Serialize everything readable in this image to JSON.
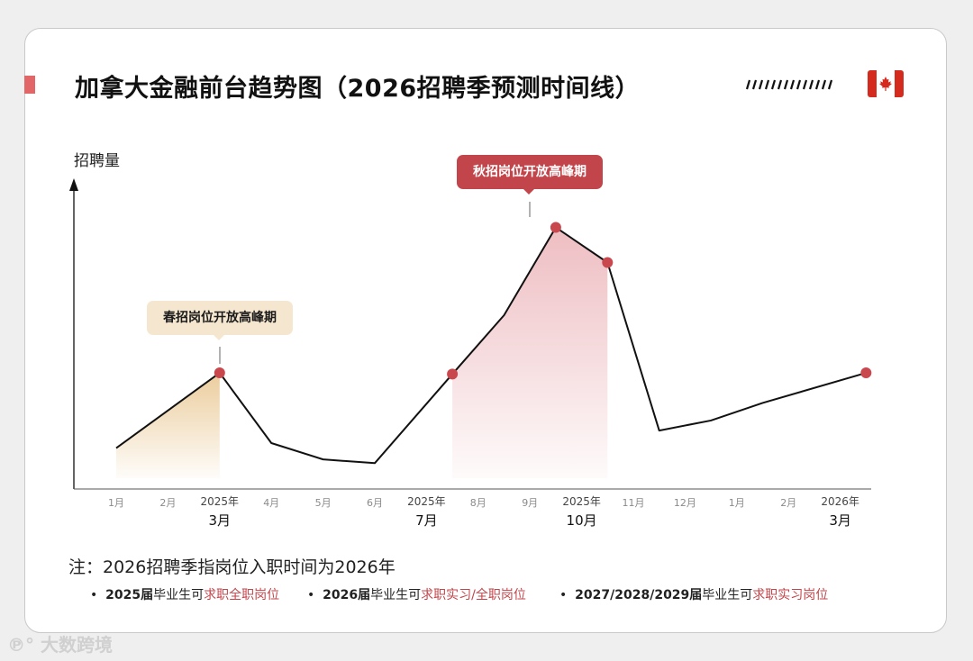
{
  "header": {
    "title": "加拿大金融前台趋势图（2026招聘季预测时间线）",
    "flag_icon": "canada-flag-icon",
    "hatch_icon": "hatch-decoration-icon"
  },
  "callouts": {
    "spring": "春招岗位开放高峰期",
    "autumn": "秋招岗位开放高峰期"
  },
  "note": {
    "text": "注：2026招聘季指岗位入职时间为2026年",
    "bullets": [
      {
        "bold": "2025届",
        "plain": "毕业生可",
        "red": "求职全职岗位"
      },
      {
        "bold": "2026届",
        "plain": "毕业生可",
        "red": "求职实习/全职岗位"
      },
      {
        "bold": "2027/2028/2029届",
        "plain": "毕业生可",
        "red": "求职实习岗位"
      }
    ]
  },
  "watermark": "大数跨境",
  "colors": {
    "accent": "#e26567",
    "autumn_red": "#c2454b",
    "spring_beige": "#f5e7cf",
    "marker": "#c8484e",
    "line": "#111111"
  },
  "chart_data": {
    "type": "line",
    "title": "加拿大金融前台趋势图（2026招聘季预测时间线）",
    "ylabel": "招聘量",
    "xlabel": "",
    "y_ticks_shown": false,
    "categories": [
      "1月",
      "2月",
      "2025年3月",
      "4月",
      "5月",
      "6月",
      "2025年7月",
      "8月",
      "9月",
      "2025年10月",
      "11月",
      "12月",
      "1月",
      "2月",
      "2026年3月"
    ],
    "tick_labels": [
      {
        "top": "1月"
      },
      {
        "top": "2月"
      },
      {
        "top": "2025年",
        "bottom": "3月"
      },
      {
        "top": "4月"
      },
      {
        "top": "5月"
      },
      {
        "top": "6月"
      },
      {
        "top": "2025年",
        "bottom": "7月"
      },
      {
        "top": "8月"
      },
      {
        "top": "9月"
      },
      {
        "top": "2025年",
        "bottom": "10月"
      },
      {
        "top": "11月"
      },
      {
        "top": "12月"
      },
      {
        "top": "1月"
      },
      {
        "top": "2月"
      },
      {
        "top": "2026年",
        "bottom": "3月"
      }
    ],
    "points": [
      {
        "x": 0,
        "y": 12
      },
      {
        "x": 2,
        "y": 42
      },
      {
        "x": 3,
        "y": 14
      },
      {
        "x": 4,
        "y": 7.5
      },
      {
        "x": 5,
        "y": 6
      },
      {
        "x": 6.5,
        "y": 41.5
      },
      {
        "x": 7.5,
        "y": 65
      },
      {
        "x": 8.5,
        "y": 100
      },
      {
        "x": 9.5,
        "y": 86
      },
      {
        "x": 10.5,
        "y": 19
      },
      {
        "x": 11.5,
        "y": 23
      },
      {
        "x": 12.5,
        "y": 30
      },
      {
        "x": 14.5,
        "y": 42
      }
    ],
    "markers_at": [
      2,
      6.5,
      8.5,
      9.5,
      14.5
    ],
    "shaded_regions": [
      {
        "name": "春招",
        "from": 0,
        "to": 2,
        "color": "#e8c48c"
      },
      {
        "name": "秋招",
        "from": 6.5,
        "to": 9.5,
        "color": "#e08890"
      }
    ],
    "ylim": [
      0,
      100
    ],
    "legend": "none"
  }
}
